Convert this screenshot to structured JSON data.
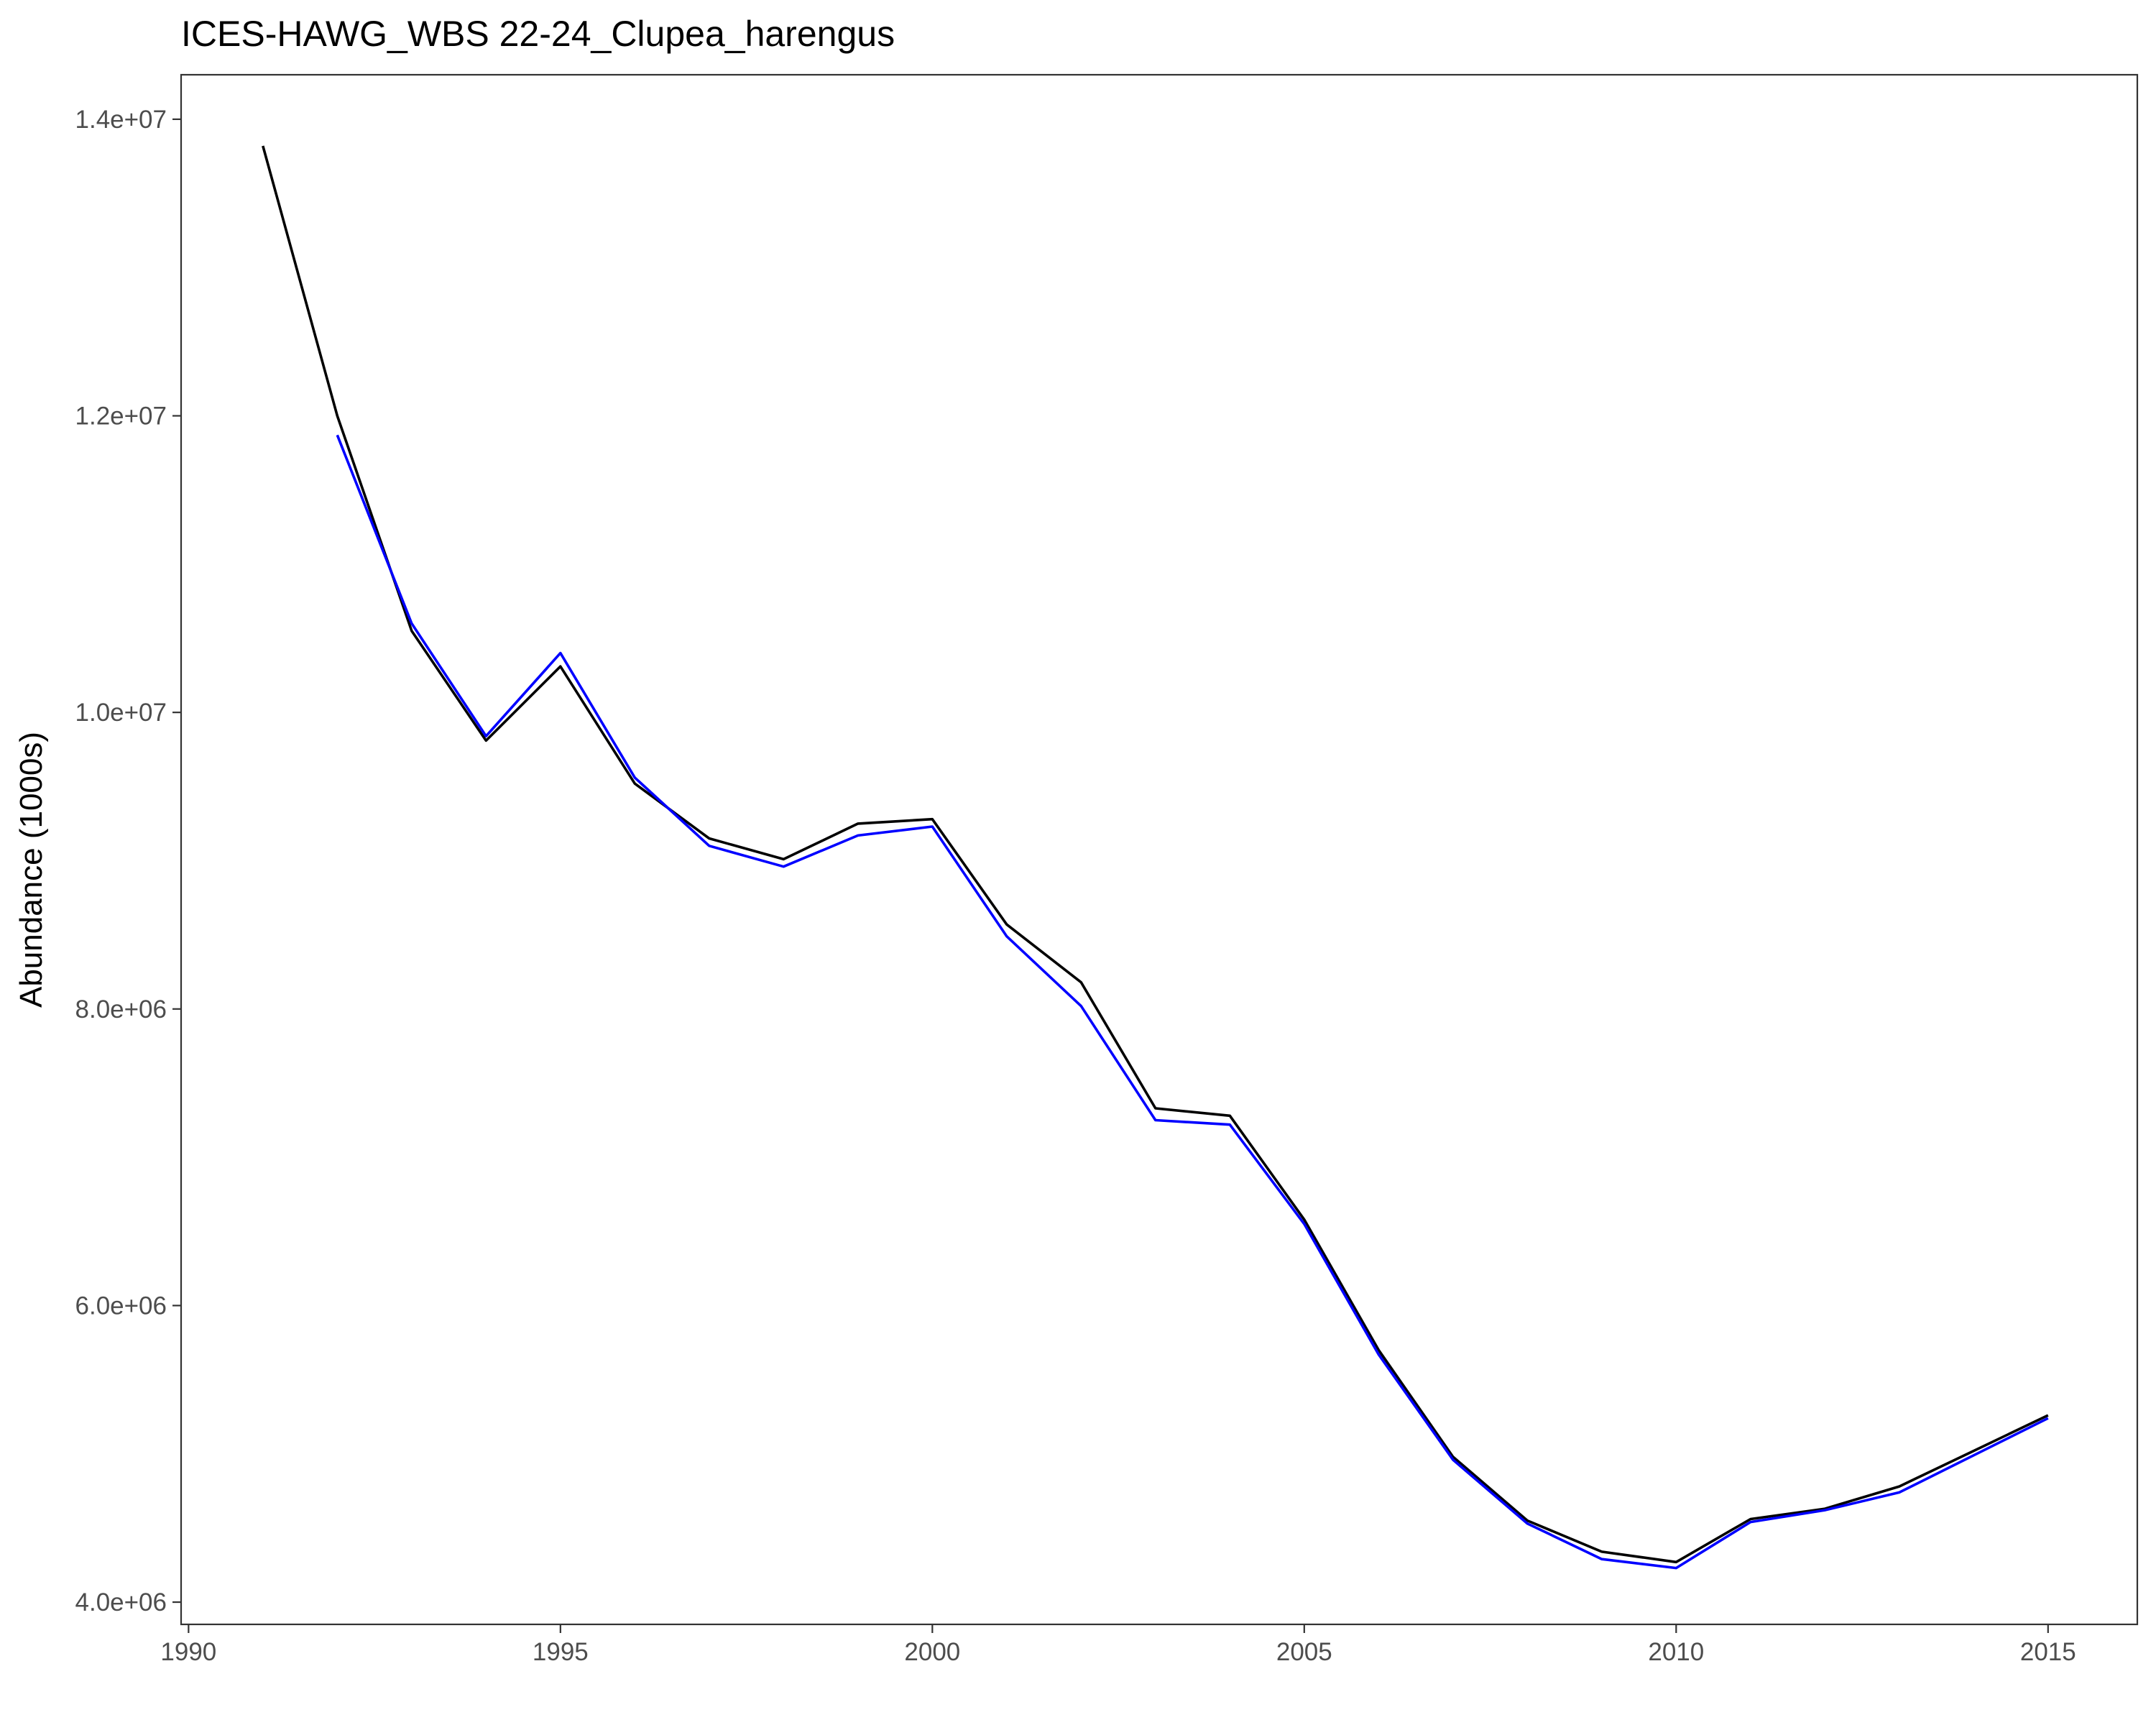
{
  "chart_data": {
    "type": "line",
    "title": "ICES-HAWG_WBS 22-24_Clupea_harengus",
    "xlabel": "",
    "ylabel": "Abundance (1000s)",
    "xlim": [
      1989.9,
      2016.2
    ],
    "ylim": [
      3850000,
      14300000
    ],
    "x_ticks": [
      1990,
      1995,
      2000,
      2005,
      2010,
      2015
    ],
    "x_tick_labels": [
      "1990",
      "1995",
      "2000",
      "2005",
      "2010",
      "2015"
    ],
    "y_ticks": [
      4000000,
      6000000,
      8000000,
      10000000,
      12000000,
      14000000
    ],
    "y_tick_labels": [
      "4.0e+06",
      "6.0e+06",
      "8.0e+06",
      "1.0e+07",
      "1.2e+07",
      "1.4e+07"
    ],
    "grid": false,
    "legend": "none",
    "series": [
      {
        "color": "#000000",
        "x": [
          1991,
          1992,
          1993,
          1994,
          1995,
          1996,
          1997,
          1998,
          1999,
          2000,
          2001,
          2002,
          2003,
          2004,
          2005,
          2006,
          2007,
          2008,
          2009,
          2010,
          2011,
          2012,
          2013,
          2014,
          2015
        ],
        "values": [
          13820000,
          12000000,
          10550000,
          9810000,
          10310000,
          9520000,
          9150000,
          9010000,
          9250000,
          9280000,
          8570000,
          8180000,
          7330000,
          7280000,
          6580000,
          5700000,
          4980000,
          4550000,
          4340000,
          4270000,
          4560000,
          4630000,
          4780000,
          5020000,
          5260000
        ]
      },
      {
        "color": "#0000ff",
        "x": [
          1992,
          1993,
          1994,
          1995,
          1996,
          1997,
          1998,
          1999,
          2000,
          2001,
          2002,
          2003,
          2004,
          2005,
          2006,
          2007,
          2008,
          2009,
          2010,
          2011,
          2012,
          2013,
          2014,
          2015
        ],
        "values": [
          11870000,
          10600000,
          9840000,
          10400000,
          9560000,
          9100000,
          8960000,
          9170000,
          9230000,
          8490000,
          8020000,
          7250000,
          7220000,
          6550000,
          5670000,
          4960000,
          4530000,
          4290000,
          4230000,
          4540000,
          4620000,
          4740000,
          4990000,
          5240000
        ]
      }
    ]
  }
}
